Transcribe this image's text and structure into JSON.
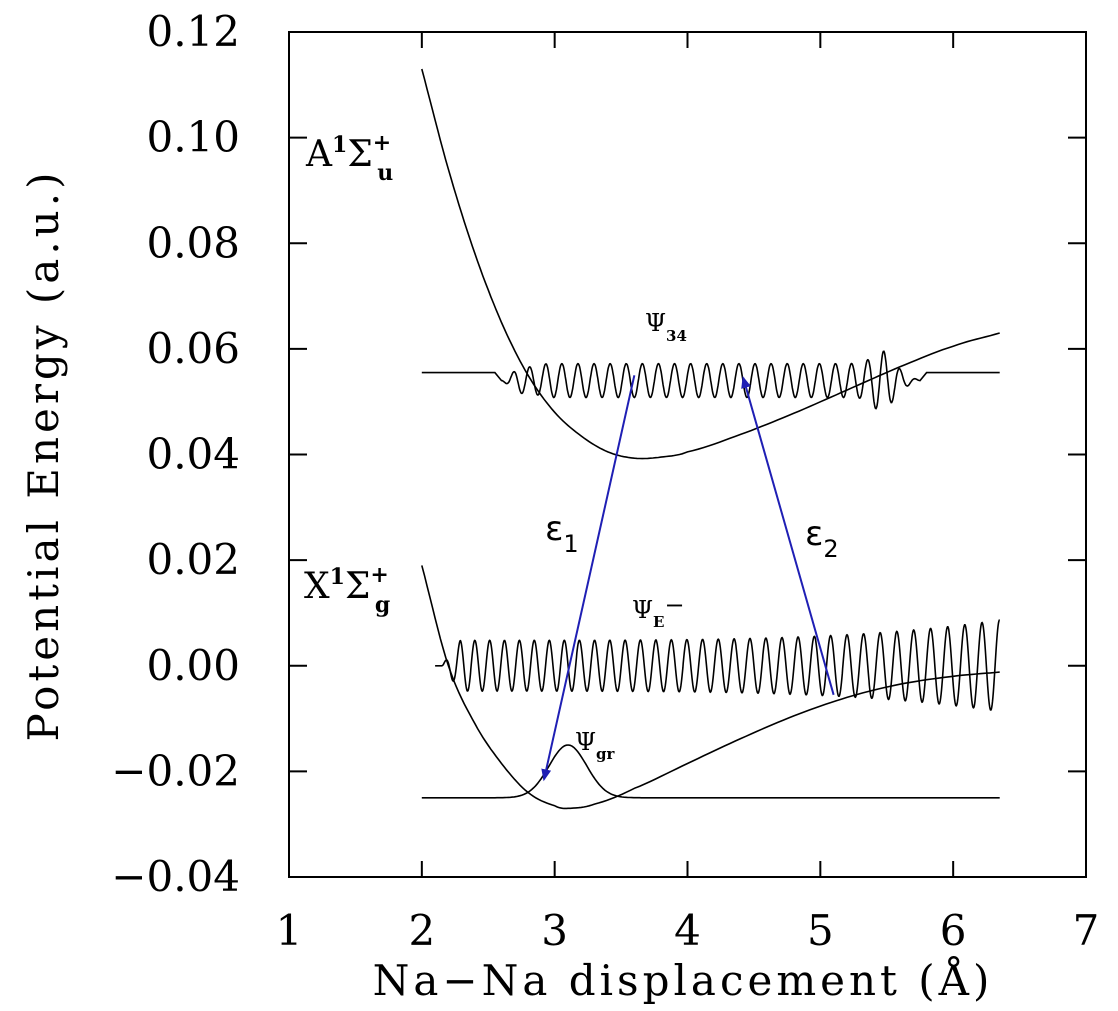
{
  "chart_data": {
    "type": "line",
    "title": "",
    "xlabel": "Na−Na displacement (Å)",
    "ylabel": "Potential Energy (a.u.)",
    "xlim": [
      1,
      7
    ],
    "ylim": [
      -0.04,
      0.12
    ],
    "xticks": [
      "1",
      "2",
      "3",
      "4",
      "5",
      "6",
      "7"
    ],
    "yticks": [
      "−0.04",
      "−0.02",
      "0.00",
      "0.02",
      "0.04",
      "0.06",
      "0.08",
      "0.10",
      "0.12"
    ],
    "grid": false,
    "legend": "none",
    "state_labels": {
      "upper": {
        "main": "A",
        "sup": "1",
        "sigma": "Σ",
        "charge": "+",
        "sub": "u"
      },
      "lower": {
        "main": "X",
        "sup": "1",
        "sigma": "Σ",
        "charge": "+",
        "sub": "g"
      }
    },
    "wavefunction_labels": {
      "psi34": {
        "main": "Ψ",
        "sub": "34"
      },
      "psiE": {
        "main": "Ψ",
        "sub": "E",
        "sup": "−"
      },
      "psigr": {
        "main": "Ψ",
        "sub": "gr"
      }
    },
    "transition_labels": {
      "e1": {
        "main": "ε",
        "sub": "1"
      },
      "e2": {
        "main": "ε",
        "sub": "2"
      }
    },
    "series": [
      {
        "curve": "A_potential",
        "x": [
          2.0,
          2.2,
          2.4,
          2.6,
          2.8,
          3.0,
          3.2,
          3.4,
          3.6,
          3.8,
          4.0,
          4.4,
          4.8,
          5.2,
          5.6,
          6.0,
          6.35
        ],
        "y": [
          0.113,
          0.094,
          0.078,
          0.065,
          0.055,
          0.048,
          0.0435,
          0.0405,
          0.0393,
          0.0395,
          0.0405,
          0.0438,
          0.0478,
          0.0522,
          0.0566,
          0.0605,
          0.063
        ]
      },
      {
        "curve": "X_potential",
        "x": [
          2.0,
          2.2,
          2.4,
          2.6,
          2.8,
          3.0,
          3.1,
          3.3,
          3.6,
          4.0,
          4.4,
          4.8,
          5.2,
          5.6,
          6.0,
          6.35
        ],
        "y": [
          0.019,
          0.0,
          -0.011,
          -0.0185,
          -0.024,
          -0.0265,
          -0.027,
          -0.0262,
          -0.0232,
          -0.0185,
          -0.0138,
          -0.0095,
          -0.006,
          -0.0035,
          -0.002,
          -0.0012
        ]
      },
      {
        "curve": "psi34_baseline",
        "x": [
          2.0,
          6.35
        ],
        "y": [
          0.0555,
          0.0555
        ]
      },
      {
        "curve": "psiE_baseline",
        "x": [
          2.1,
          6.35
        ],
        "y": [
          0.0,
          0.0
        ]
      },
      {
        "curve": "psigr_baseline",
        "x": [
          2.0,
          6.35
        ],
        "y": [
          -0.025,
          -0.025
        ]
      }
    ],
    "wavefunctions": [
      {
        "name": "psi34",
        "x_range": [
          2.6,
          5.75
        ],
        "center": 0.054,
        "amplitude": 0.0032,
        "cycles": 26
      },
      {
        "name": "psiE",
        "x_range": [
          2.15,
          6.35
        ],
        "center": 0.0,
        "amplitude": 0.0048,
        "cycles": 38
      },
      {
        "name": "psigr",
        "x0": 3.1,
        "width": 0.2,
        "baseline": -0.025,
        "peak": -0.015
      }
    ],
    "arrows": [
      {
        "label": "e1",
        "from": [
          3.6,
          0.055
        ],
        "to": [
          2.92,
          -0.0215
        ],
        "color": "#1f1fb4"
      },
      {
        "label": "e2",
        "from": [
          5.1,
          -0.0055
        ],
        "to": [
          4.42,
          0.0545
        ],
        "color": "#1f1fb4"
      }
    ]
  }
}
